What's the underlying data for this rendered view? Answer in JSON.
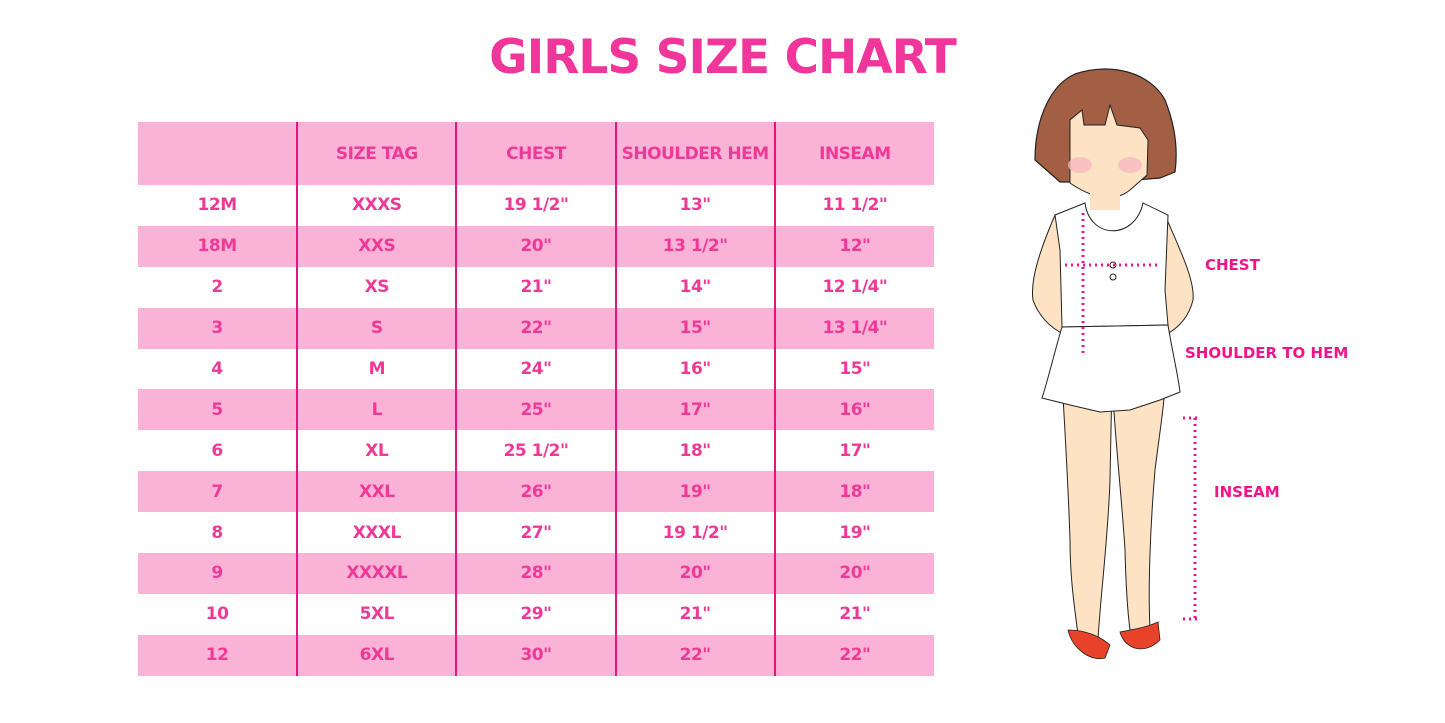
{
  "title": "GIRLS SIZE CHART",
  "table": {
    "headers": [
      "",
      "SIZE TAG",
      "CHEST",
      "SHOULDER HEM",
      "INSEAM"
    ],
    "rows": [
      [
        "12M",
        "XXXS",
        "19 1/2\"",
        "13\"",
        "11 1/2\""
      ],
      [
        "18M",
        "XXS",
        "20\"",
        "13 1/2\"",
        "12\""
      ],
      [
        "2",
        "XS",
        "21\"",
        "14\"",
        "12 1/4\""
      ],
      [
        "3",
        "S",
        "22\"",
        "15\"",
        "13 1/4\""
      ],
      [
        "4",
        "M",
        "24\"",
        "16\"",
        "15\""
      ],
      [
        "5",
        "L",
        "25\"",
        "17\"",
        "16\""
      ],
      [
        "6",
        "XL",
        "25 1/2\"",
        "18\"",
        "17\""
      ],
      [
        "7",
        "XXL",
        "26\"",
        "19\"",
        "18\""
      ],
      [
        "8",
        "XXXL",
        "27\"",
        "19 1/2\"",
        "19\""
      ],
      [
        "9",
        "XXXXL",
        "28\"",
        "20\"",
        "20\""
      ],
      [
        "10",
        "5XL",
        "29\"",
        "21\"",
        "21\""
      ],
      [
        "12",
        "6XL",
        "30\"",
        "22\"",
        "22\""
      ]
    ]
  },
  "illustration": {
    "labels": {
      "chest": "CHEST",
      "shoulder_to_hem": "SHOULDER TO HEM",
      "inseam": "INSEAM"
    }
  },
  "colors": {
    "accent": "#f0359b",
    "row_pink": "#fbb2d7",
    "divider": "#e6147e"
  }
}
